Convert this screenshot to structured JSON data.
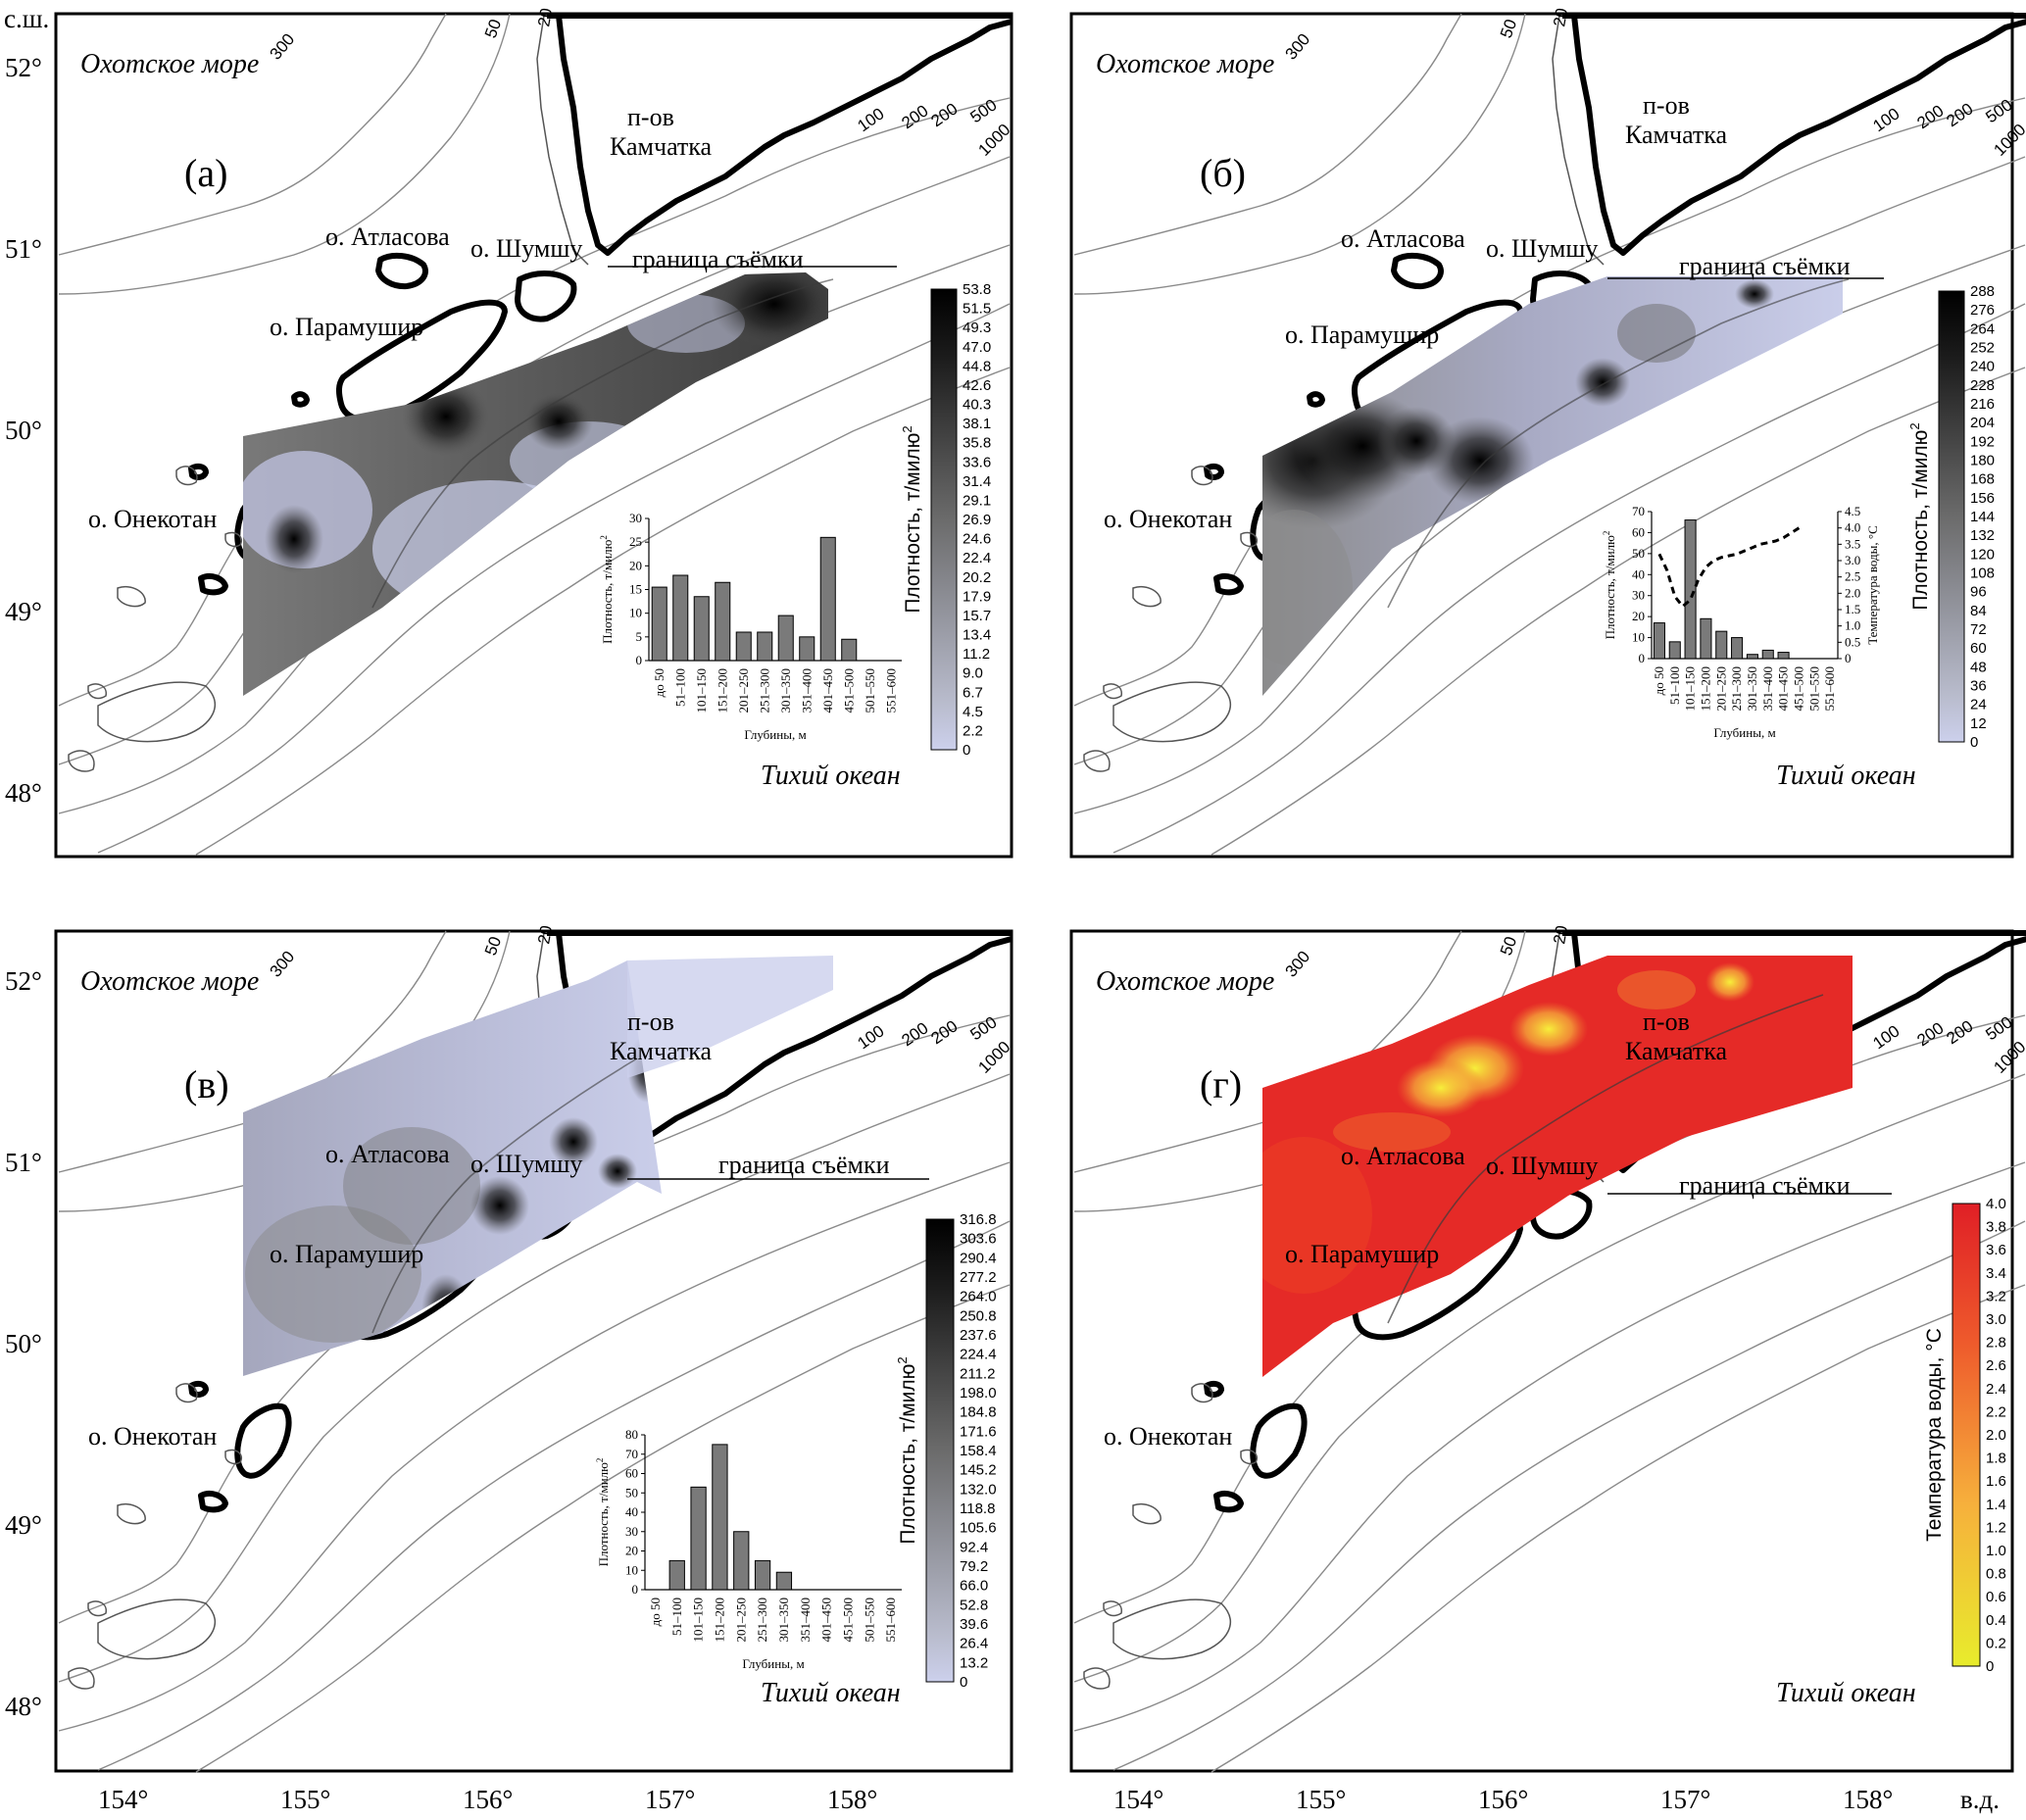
{
  "labels": {
    "okhotsk": "Охотское море",
    "pacific": "Тихий океан",
    "kamchatka_1": "п-ов",
    "kamchatka_2": "Камчатка",
    "atlasova": "о. Атласова",
    "shumshu": "о. Шумшу",
    "paramushir": "о. Парамушир",
    "onekotan": "о. Онекотан",
    "survey_boundary": "граница съёмки",
    "lat_unit": "с.ш.",
    "lon_unit": "в.д."
  },
  "axes": {
    "lat_ticks": [
      "52°",
      "51°",
      "50°",
      "49°",
      "48°"
    ],
    "lon_ticks": [
      "154°",
      "155°",
      "156°",
      "157°",
      "158°"
    ]
  },
  "contour_labels": [
    "300",
    "50",
    "20",
    "100",
    "200",
    "500",
    "1000"
  ],
  "colors": {
    "density_dark": "#000000",
    "density_light": "#ccd0ec",
    "temp_low": "#e8ec2c",
    "temp_mid": "#f3a23a",
    "temp_high": "#e01f26"
  },
  "panels": [
    {
      "id": "a",
      "letter": "(а)",
      "colorbar": {
        "title": "Плотность, т/милю",
        "title_sup": "2",
        "ticks": [
          "53.8",
          "51.5",
          "49.3",
          "47.0",
          "44.8",
          "42.6",
          "40.3",
          "38.1",
          "35.8",
          "33.6",
          "31.4",
          "29.1",
          "26.9",
          "24.6",
          "22.4",
          "20.2",
          "17.9",
          "15.7",
          "13.4",
          "11.2",
          "9.0",
          "6.7",
          "4.5",
          "2.2",
          "0"
        ]
      },
      "histogram": {
        "ylabel": "Плотность, т/милю",
        "ylabel_sup": "2",
        "xlabel": "Глубины, м",
        "yticks": [
          "0",
          "5",
          "10",
          "15",
          "20",
          "25",
          "30"
        ],
        "categories": [
          "до 50",
          "51–100",
          "101–150",
          "151–200",
          "201–250",
          "251–300",
          "301–350",
          "351–400",
          "401–450",
          "451–500",
          "501–550",
          "551–600"
        ],
        "values": [
          15.5,
          18,
          13.5,
          16.5,
          6,
          6,
          9.5,
          5,
          26,
          4.5,
          0,
          0
        ],
        "ylim": [
          0,
          30
        ]
      }
    },
    {
      "id": "b",
      "letter": "(б)",
      "colorbar": {
        "title": "Плотность, т/милю",
        "title_sup": "2",
        "ticks": [
          "288",
          "276",
          "264",
          "252",
          "240",
          "228",
          "216",
          "204",
          "192",
          "180",
          "168",
          "156",
          "144",
          "132",
          "120",
          "108",
          "96",
          "84",
          "72",
          "60",
          "48",
          "36",
          "24",
          "12",
          "0"
        ]
      },
      "histogram": {
        "ylabel": "Плотность, т/милю",
        "ylabel_sup": "2",
        "ylabel2": "Температура воды, °С",
        "xlabel": "Глубины, м",
        "yticks": [
          "0",
          "10",
          "20",
          "30",
          "40",
          "50",
          "60",
          "70"
        ],
        "y2ticks": [
          "0",
          "0.5",
          "1.0",
          "1.5",
          "2.0",
          "2.5",
          "3.0",
          "3.5",
          "4.0",
          "4.5"
        ],
        "categories": [
          "до 50",
          "51–100",
          "101–150",
          "151–200",
          "201–250",
          "251–300",
          "301–350",
          "351–400",
          "401–450",
          "451–500",
          "501–550",
          "551–600"
        ],
        "values": [
          17,
          8,
          66,
          19,
          13,
          10,
          2,
          4,
          3,
          0,
          0,
          0
        ],
        "ylim": [
          0,
          70
        ],
        "temp_x": [
          0,
          0.5,
          1,
          1.5,
          2,
          2.5,
          3,
          3.5,
          4,
          4.5,
          5,
          5.5,
          6,
          6.5,
          7,
          7.5,
          8,
          8.5,
          9
        ],
        "temp_values": [
          3.2,
          2.7,
          1.9,
          1.6,
          1.8,
          2.4,
          2.8,
          3.0,
          3.1,
          3.15,
          3.2,
          3.3,
          3.4,
          3.5,
          3.55,
          3.6,
          3.7,
          3.85,
          4.0
        ],
        "y2lim": [
          0,
          4.5
        ]
      }
    },
    {
      "id": "v",
      "letter": "(в)",
      "colorbar": {
        "title": "Плотность, т/милю",
        "title_sup": "2",
        "ticks": [
          "316.8",
          "303.6",
          "290.4",
          "277.2",
          "264.0",
          "250.8",
          "237.6",
          "224.4",
          "211.2",
          "198.0",
          "184.8",
          "171.6",
          "158.4",
          "145.2",
          "132.0",
          "118.8",
          "105.6",
          "92.4",
          "79.2",
          "66.0",
          "52.8",
          "39.6",
          "26.4",
          "13.2",
          "0"
        ]
      },
      "histogram": {
        "ylabel": "Плотность, т/милю",
        "ylabel_sup": "2",
        "xlabel": "Глубины, м",
        "yticks": [
          "0",
          "10",
          "20",
          "30",
          "40",
          "50",
          "60",
          "70",
          "80"
        ],
        "categories": [
          "до 50",
          "51–100",
          "101–150",
          "151–200",
          "201–250",
          "251–300",
          "301–350",
          "351–400",
          "401–450",
          "451–500",
          "501–550",
          "551–600"
        ],
        "values": [
          0,
          15,
          53,
          75,
          30,
          15,
          9,
          0,
          0,
          0,
          0,
          0
        ],
        "ylim": [
          0,
          80
        ]
      }
    },
    {
      "id": "g",
      "letter": "(г)",
      "colorbar": {
        "title": "Температура воды, °С",
        "ticks": [
          "4.0",
          "3.8",
          "3.6",
          "3.4",
          "3.2",
          "3.0",
          "2.8",
          "2.6",
          "2.4",
          "2.2",
          "2.0",
          "1.8",
          "1.6",
          "1.4",
          "1.2",
          "1.0",
          "0.8",
          "0.6",
          "0.4",
          "0.2",
          "0"
        ]
      }
    }
  ]
}
